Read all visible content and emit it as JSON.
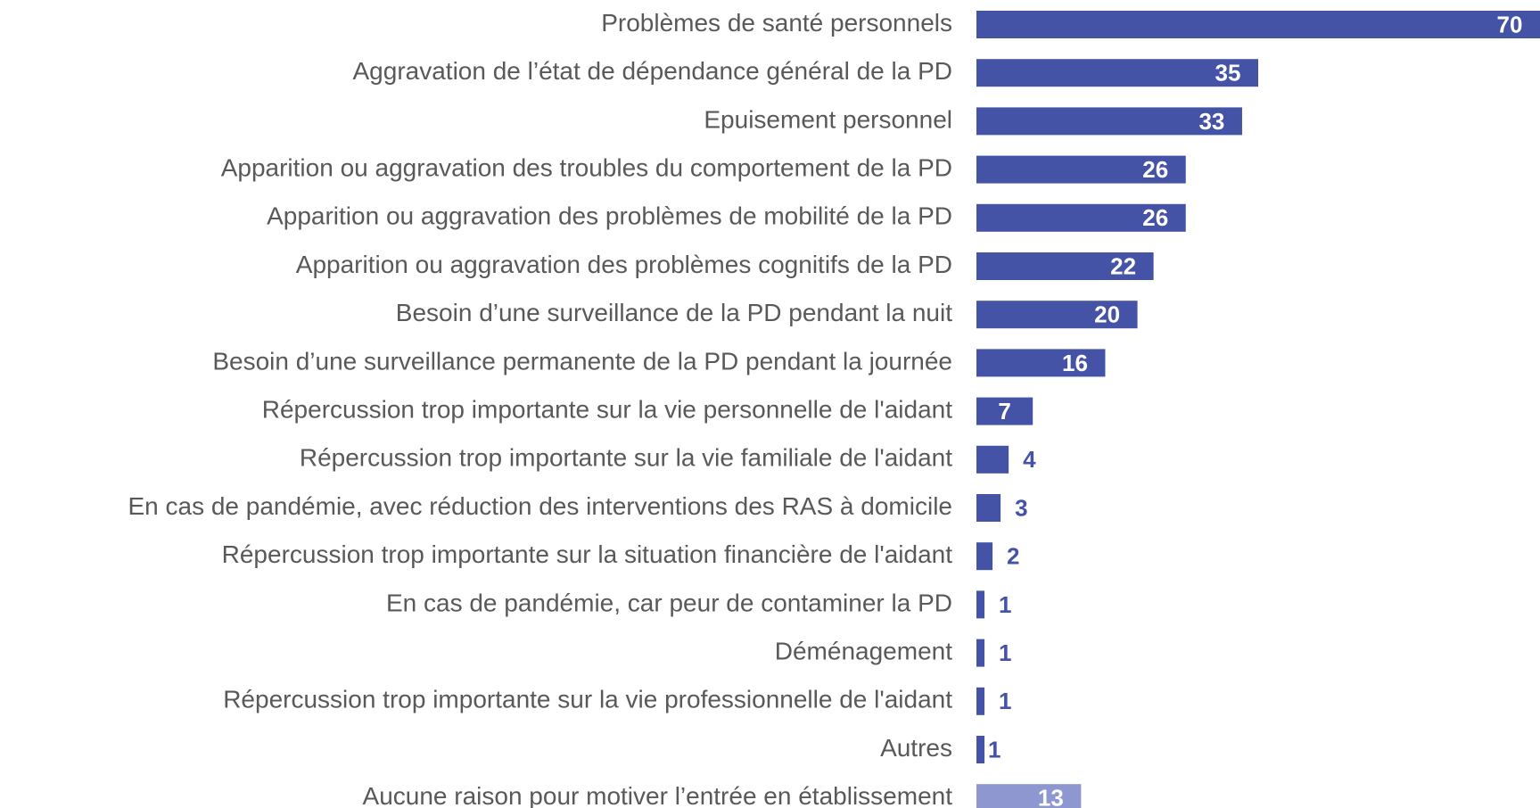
{
  "chart_data": {
    "type": "barh",
    "categories": [
      "Problèmes de santé personnels",
      "Aggravation de l’état de dépendance général de la PD",
      "Epuisement personnel",
      "Apparition ou aggravation des troubles du comportement de la PD",
      "Apparition ou aggravation des problèmes de mobilité de la PD",
      "Apparition ou aggravation des problèmes cognitifs de la PD",
      "Besoin d’une surveillance de la PD pendant la nuit",
      "Besoin d’une surveillance permanente de la PD pendant la journée",
      "Répercussion trop importante sur la vie personnelle de l'aidant",
      "Répercussion trop importante sur la vie familiale de l'aidant",
      "En cas de pandémie, avec réduction des interventions des RAS à domicile",
      "Répercussion trop importante sur la situation financière de l'aidant",
      "En cas de pandémie, car peur de contaminer la PD",
      "Déménagement",
      "Répercussion trop importante sur la vie professionnelle de l'aidant",
      "Autres",
      "Aucune raison pour motiver l’entrée en établissement"
    ],
    "values": [
      70,
      35,
      33,
      26,
      26,
      22,
      20,
      16,
      7,
      4,
      3,
      2,
      1,
      1,
      1,
      1,
      13
    ],
    "colors": [
      "#4453a6",
      "#4453a6",
      "#4453a6",
      "#4453a6",
      "#4453a6",
      "#4453a6",
      "#4453a6",
      "#4453a6",
      "#4453a6",
      "#4453a6",
      "#4453a6",
      "#4453a6",
      "#4453a6",
      "#4453a6",
      "#4453a6",
      "#4453a6",
      "#8e97d0"
    ]
  }
}
